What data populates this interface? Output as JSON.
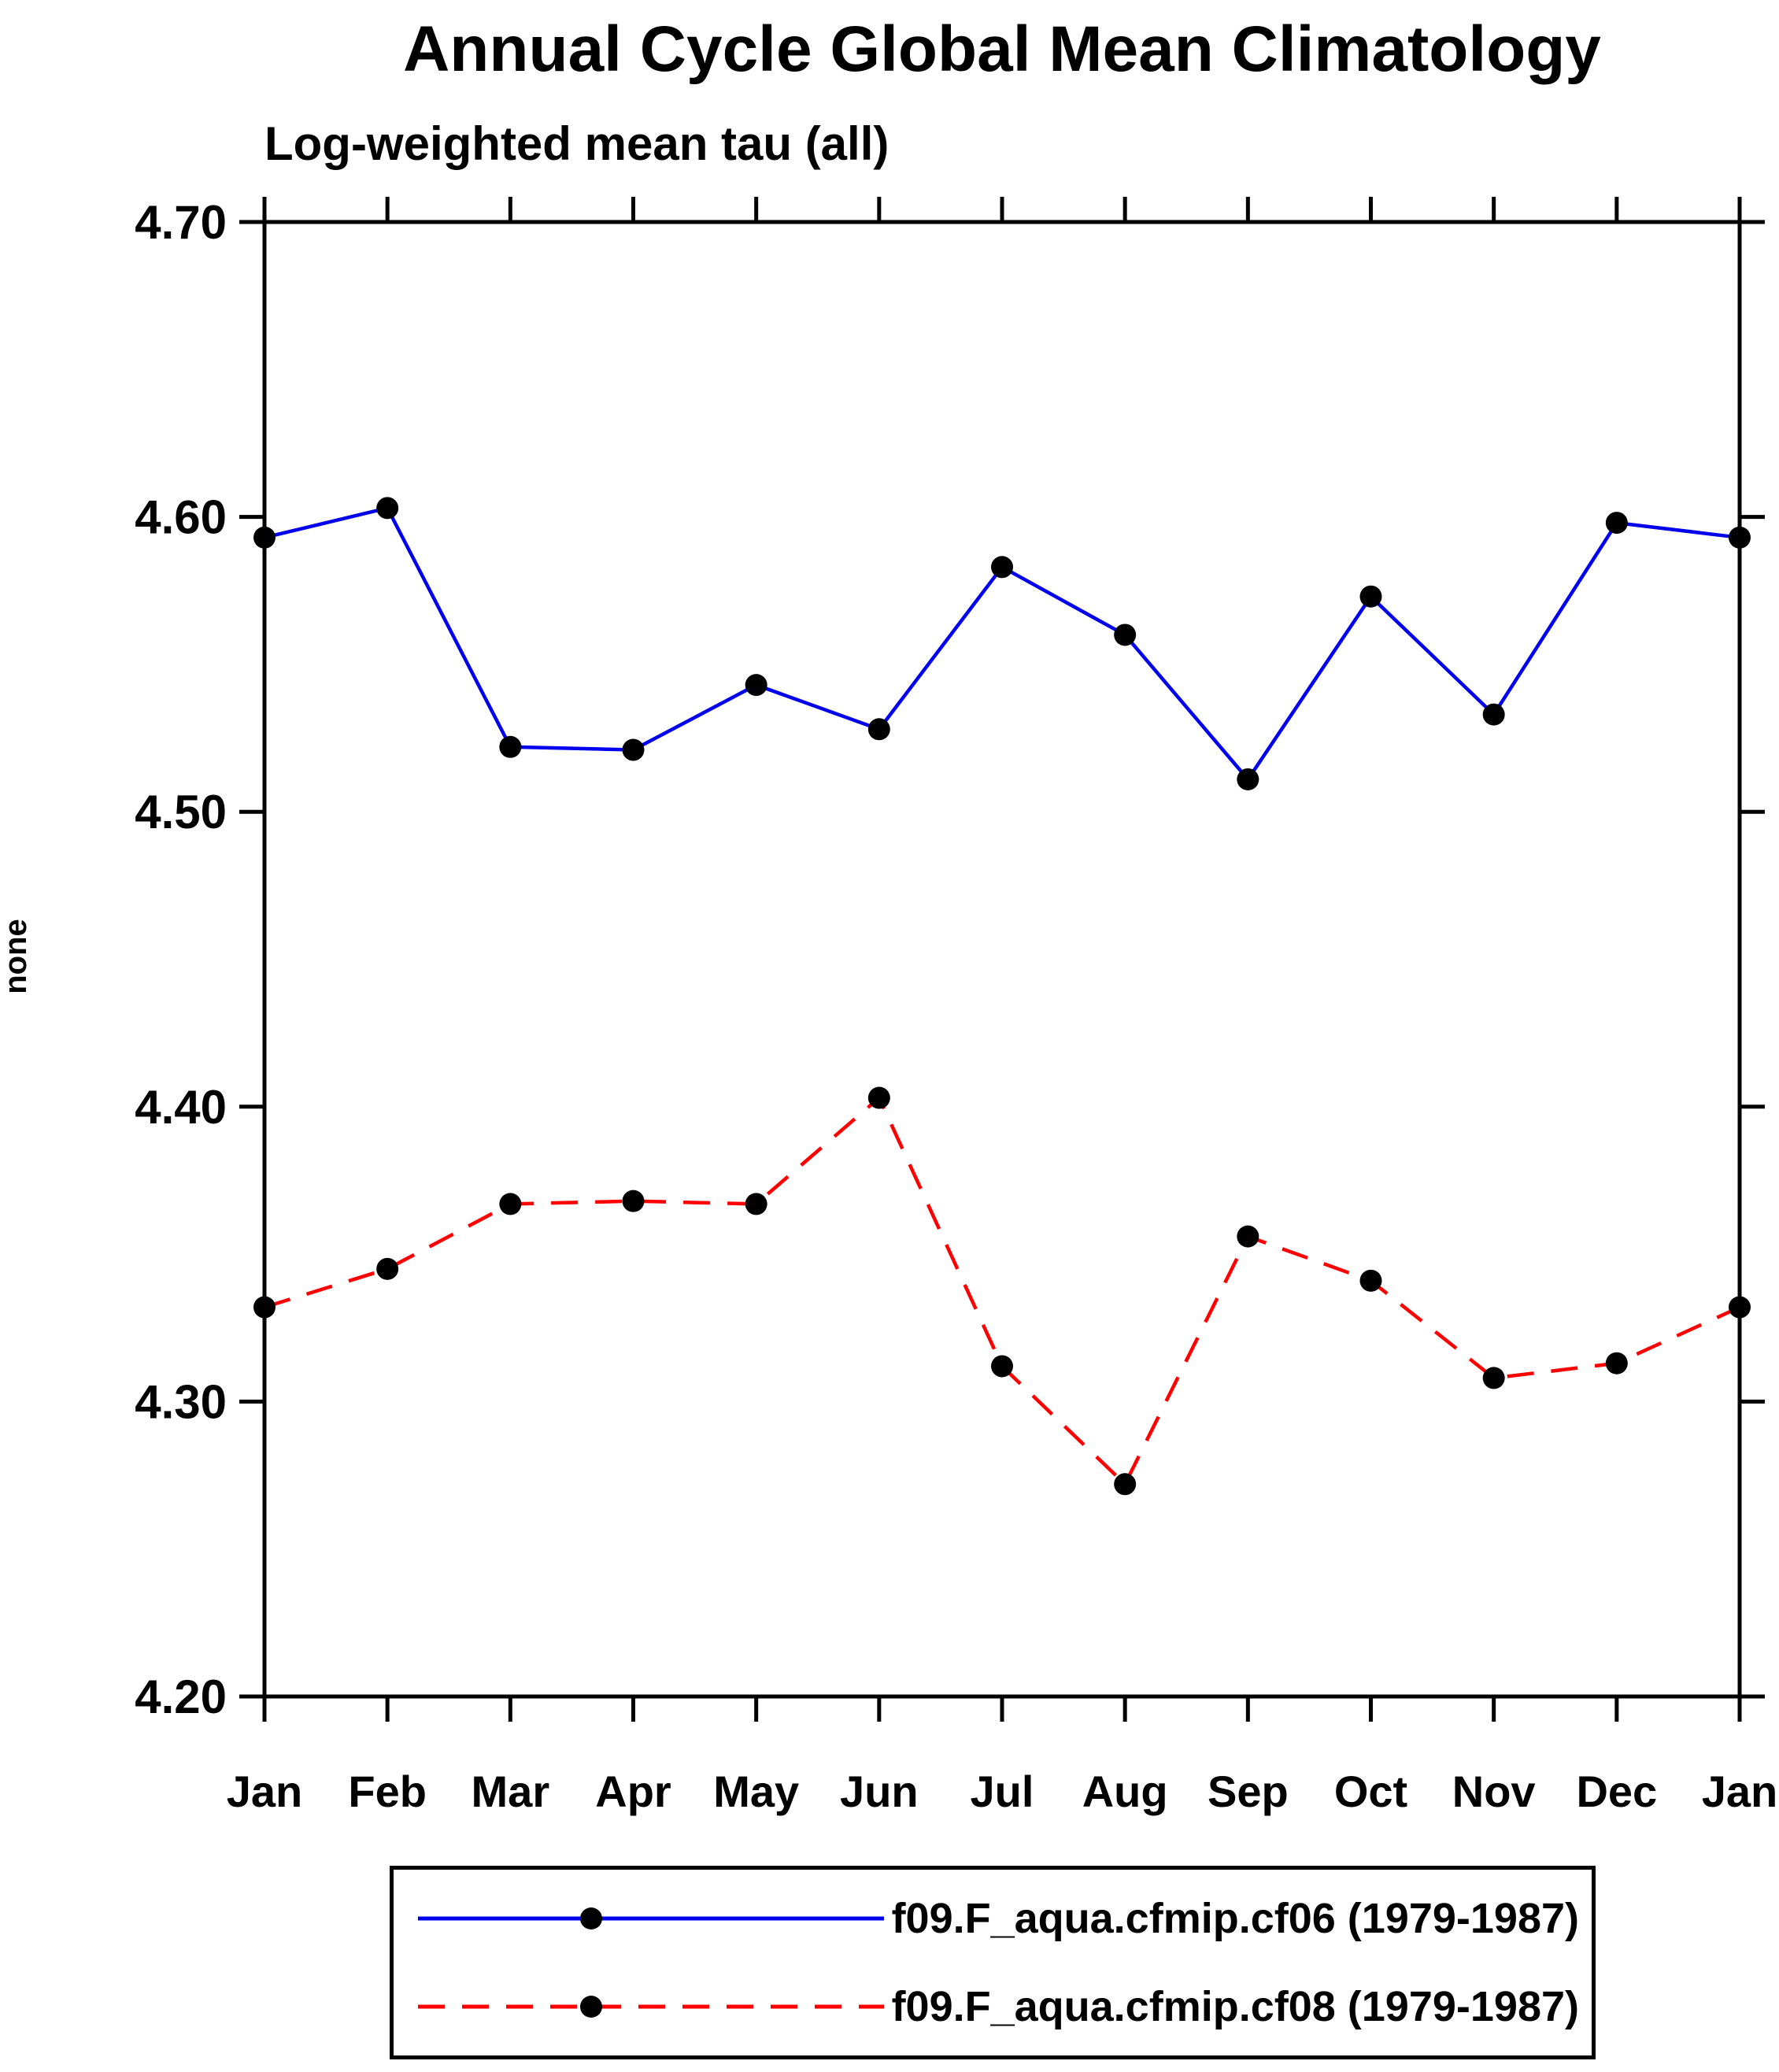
{
  "chart_data": {
    "type": "line",
    "title": "Annual Cycle Global Mean Climatology",
    "subtitle": "Log-weighted mean tau (all)",
    "xlabel": "",
    "ylabel": "none",
    "categories": [
      "Jan",
      "Feb",
      "Mar",
      "Apr",
      "May",
      "Jun",
      "Jul",
      "Aug",
      "Sep",
      "Oct",
      "Nov",
      "Dec",
      "Jan"
    ],
    "ylim": [
      4.2,
      4.7
    ],
    "yticks": [
      4.2,
      4.3,
      4.4,
      4.5,
      4.6,
      4.7
    ],
    "grid": false,
    "legend_position": "bottom",
    "marker": {
      "shape": "circle",
      "color": "#000000"
    },
    "series": [
      {
        "name": "f09.F_aqua.cfmip.cf06 (1979-1987)",
        "color": "#0000ee",
        "style": "solid",
        "values": [
          4.593,
          4.603,
          4.522,
          4.521,
          4.543,
          4.528,
          4.583,
          4.56,
          4.511,
          4.573,
          4.533,
          4.598,
          4.593
        ]
      },
      {
        "name": "f09.F_aqua.cfmip.cf08 (1979-1987)",
        "color": "#ff0000",
        "style": "dashed",
        "values": [
          4.332,
          4.345,
          4.367,
          4.368,
          4.367,
          4.403,
          4.312,
          4.272,
          4.356,
          4.341,
          4.308,
          4.313,
          4.332
        ]
      }
    ]
  }
}
